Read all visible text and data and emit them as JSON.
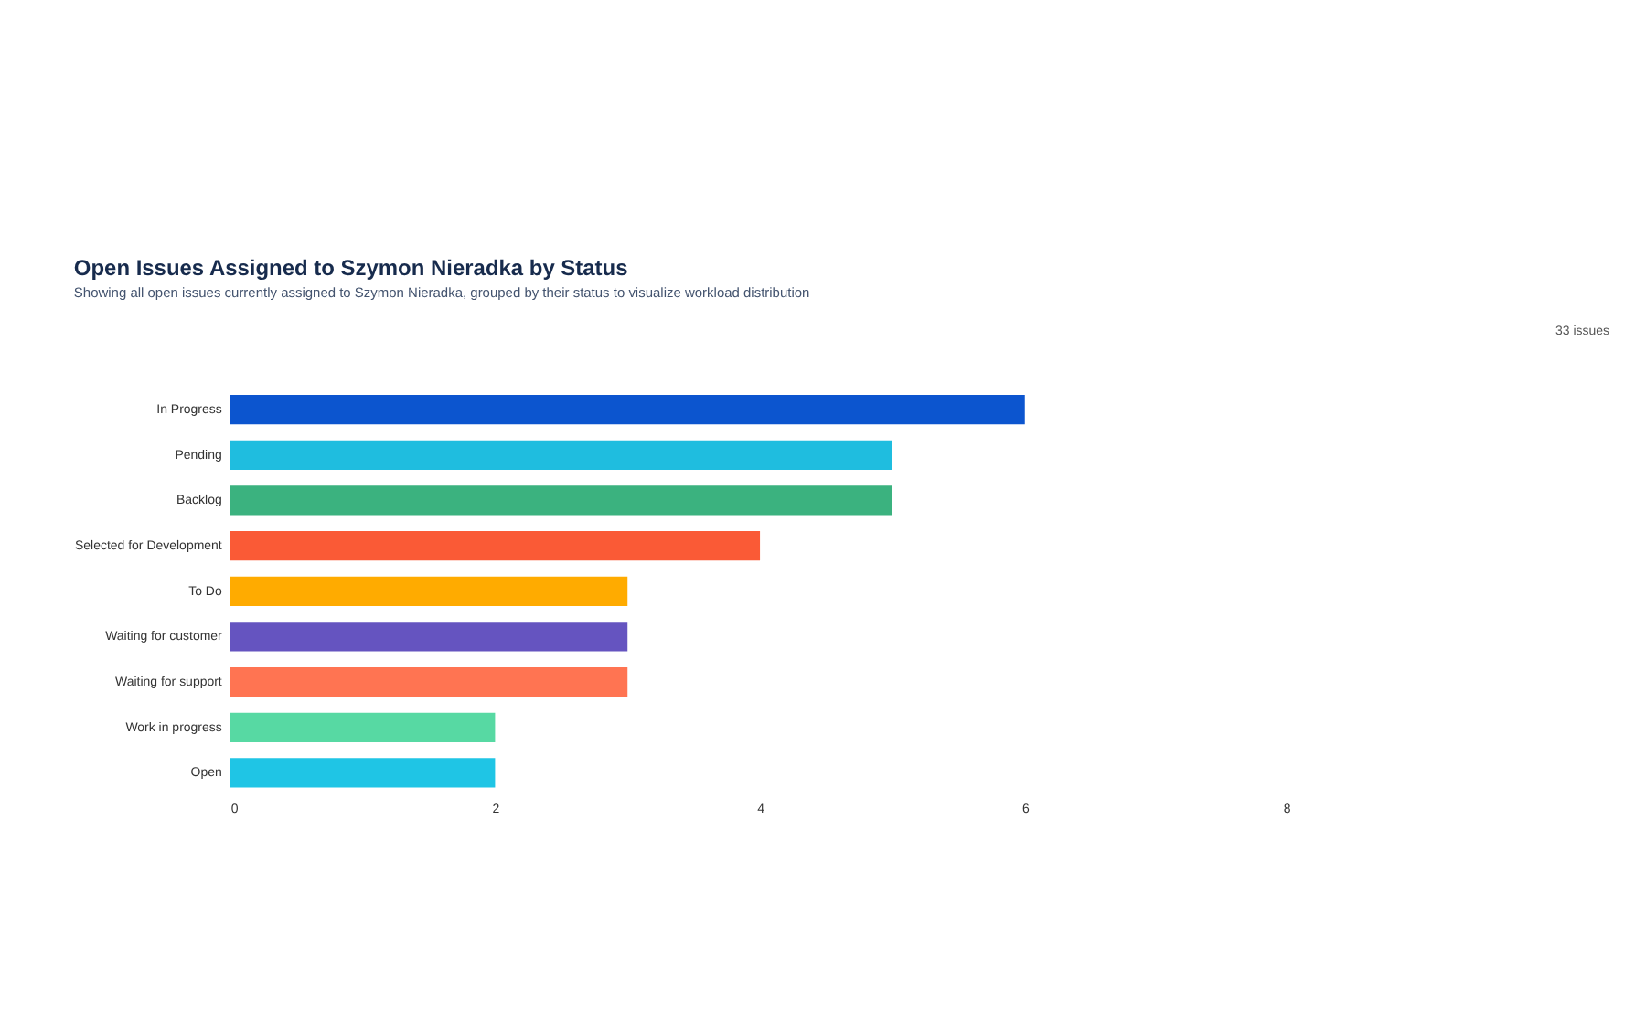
{
  "chart_data": {
    "type": "bar",
    "orientation": "horizontal",
    "title": "Open Issues Assigned to Szymon Nieradka by Status",
    "subtitle": "Showing all open issues currently assigned to Szymon Nieradka, grouped by their status to visualize workload distribution",
    "annotations": [
      "33 issues"
    ],
    "categories": [
      "In Progress",
      "Pending",
      "Backlog",
      "Selected for Development",
      "To Do",
      "Waiting for customer",
      "Waiting for support",
      "Work in progress",
      "Open"
    ],
    "values": [
      6,
      5,
      5,
      4,
      3,
      3,
      3,
      2,
      2
    ],
    "colors": [
      "#0c55cf",
      "#1fbddf",
      "#3bb27f",
      "#fa5a36",
      "#ffab00",
      "#6554c0",
      "#ff7452",
      "#57d9a3",
      "#1fc5e5"
    ],
    "xlim": [
      0,
      8
    ],
    "xticks": [
      0,
      2,
      4,
      6,
      8
    ],
    "grid": false
  }
}
